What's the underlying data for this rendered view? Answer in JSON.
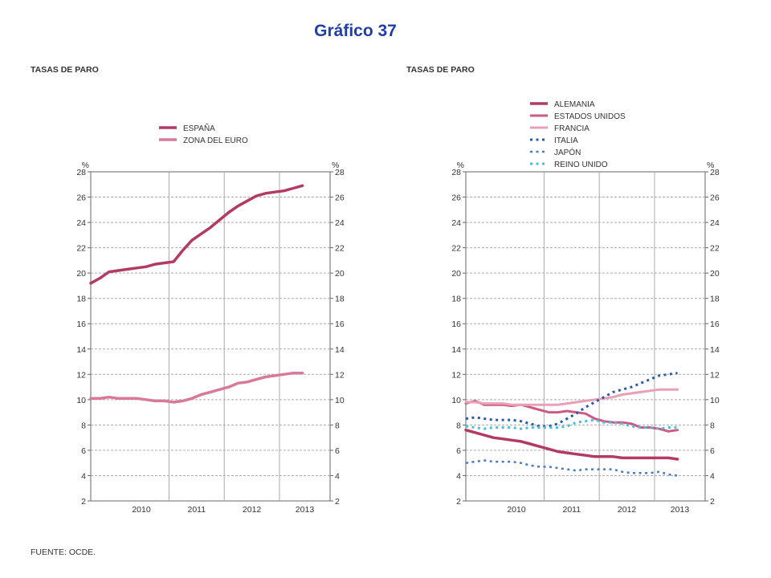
{
  "page": {
    "title": "Gráfico 37",
    "source": "FUENTE: OCDE."
  },
  "colors": {
    "grid": "#aaaaaa",
    "axis": "#666666",
    "title": "#1f3fa8"
  },
  "chart_data": [
    {
      "type": "line",
      "title": "TASAS DE PARO",
      "y_unit": "%",
      "ylim": [
        2,
        28
      ],
      "y_ticks": [
        "2",
        "4",
        "6",
        "8",
        "10",
        "12",
        "14",
        "16",
        "18",
        "20",
        "22",
        "24",
        "26",
        "28"
      ],
      "x_period_labels": [
        "2010",
        "2011",
        "2012",
        "2013"
      ],
      "x_range": [
        "2009-08",
        "2013-12"
      ],
      "grid": true,
      "legend_position": "top",
      "series": [
        {
          "name": "ESPAÑA",
          "color": "#b23a64",
          "style": "solid",
          "width": 3.5,
          "x": [
            "2009-08",
            "2009-10",
            "2009-12",
            "2010-02",
            "2010-04",
            "2010-06",
            "2010-08",
            "2010-10",
            "2010-12",
            "2011-02",
            "2011-04",
            "2011-06",
            "2011-08",
            "2011-10",
            "2011-12",
            "2012-02",
            "2012-04",
            "2012-06",
            "2012-08",
            "2012-10",
            "2012-12",
            "2013-02",
            "2013-04",
            "2013-06"
          ],
          "y": [
            19.2,
            19.6,
            20.1,
            20.2,
            20.3,
            20.4,
            20.5,
            20.7,
            20.8,
            20.9,
            21.8,
            22.6,
            23.1,
            23.6,
            24.2,
            24.8,
            25.3,
            25.7,
            26.1,
            26.3,
            26.4,
            26.5,
            26.7,
            26.9
          ]
        },
        {
          "name": "ZONA DEL EURO",
          "color": "#d9799a",
          "style": "solid",
          "width": 3.5,
          "x": [
            "2009-08",
            "2009-10",
            "2009-12",
            "2010-02",
            "2010-04",
            "2010-06",
            "2010-08",
            "2010-10",
            "2010-12",
            "2011-02",
            "2011-04",
            "2011-06",
            "2011-08",
            "2011-10",
            "2011-12",
            "2012-02",
            "2012-04",
            "2012-06",
            "2012-08",
            "2012-10",
            "2012-12",
            "2013-02",
            "2013-04",
            "2013-06"
          ],
          "y": [
            10.1,
            10.1,
            10.2,
            10.1,
            10.1,
            10.1,
            10.0,
            9.9,
            9.9,
            9.8,
            9.9,
            10.1,
            10.4,
            10.6,
            10.8,
            11.0,
            11.3,
            11.4,
            11.6,
            11.8,
            11.9,
            12.0,
            12.1,
            12.1
          ]
        }
      ]
    },
    {
      "type": "line",
      "title": "TASAS DE PARO",
      "y_unit": "%",
      "ylim": [
        2,
        28
      ],
      "y_ticks": [
        "2",
        "4",
        "6",
        "8",
        "10",
        "12",
        "14",
        "16",
        "18",
        "20",
        "22",
        "24",
        "26",
        "28"
      ],
      "x_period_labels": [
        "2010",
        "2011",
        "2012",
        "2013"
      ],
      "x_range": [
        "2009-08",
        "2013-12"
      ],
      "grid": true,
      "legend_position": "top",
      "series": [
        {
          "name": "ALEMANIA",
          "color": "#b23a64",
          "style": "solid",
          "width": 3.5,
          "x": [
            "2009-08",
            "2009-10",
            "2009-12",
            "2010-02",
            "2010-04",
            "2010-06",
            "2010-08",
            "2010-10",
            "2010-12",
            "2011-02",
            "2011-04",
            "2011-06",
            "2011-08",
            "2011-10",
            "2011-12",
            "2012-02",
            "2012-04",
            "2012-06",
            "2012-08",
            "2012-10",
            "2012-12",
            "2013-02",
            "2013-04",
            "2013-06"
          ],
          "y": [
            7.6,
            7.4,
            7.2,
            7.0,
            6.9,
            6.8,
            6.7,
            6.5,
            6.3,
            6.1,
            5.9,
            5.8,
            5.7,
            5.6,
            5.5,
            5.5,
            5.5,
            5.4,
            5.4,
            5.4,
            5.4,
            5.4,
            5.4,
            5.3
          ]
        },
        {
          "name": "ESTADOS UNIDOS",
          "color": "#cc5a82",
          "style": "solid",
          "width": 3,
          "x": [
            "2009-08",
            "2009-10",
            "2009-12",
            "2010-02",
            "2010-04",
            "2010-06",
            "2010-08",
            "2010-10",
            "2010-12",
            "2011-02",
            "2011-04",
            "2011-06",
            "2011-08",
            "2011-10",
            "2011-12",
            "2012-02",
            "2012-04",
            "2012-06",
            "2012-08",
            "2012-10",
            "2012-12",
            "2013-02",
            "2013-04",
            "2013-06"
          ],
          "y": [
            9.7,
            9.9,
            9.6,
            9.6,
            9.6,
            9.5,
            9.6,
            9.4,
            9.2,
            9.0,
            9.0,
            9.1,
            9.0,
            8.9,
            8.5,
            8.3,
            8.2,
            8.2,
            8.1,
            7.8,
            7.8,
            7.7,
            7.5,
            7.6
          ]
        },
        {
          "name": "FRANCIA",
          "color": "#e8a0b6",
          "style": "solid",
          "width": 3,
          "x": [
            "2009-08",
            "2009-10",
            "2009-12",
            "2010-02",
            "2010-04",
            "2010-06",
            "2010-08",
            "2010-10",
            "2010-12",
            "2011-02",
            "2011-04",
            "2011-06",
            "2011-08",
            "2011-10",
            "2011-12",
            "2012-02",
            "2012-04",
            "2012-06",
            "2012-08",
            "2012-10",
            "2012-12",
            "2013-02",
            "2013-04",
            "2013-06"
          ],
          "y": [
            9.8,
            9.8,
            9.7,
            9.7,
            9.7,
            9.6,
            9.6,
            9.6,
            9.6,
            9.6,
            9.6,
            9.7,
            9.8,
            9.9,
            10.0,
            10.1,
            10.2,
            10.4,
            10.5,
            10.6,
            10.7,
            10.8,
            10.8,
            10.8
          ]
        },
        {
          "name": "ITALIA",
          "color": "#2b5aa8",
          "style": "dotted",
          "width": 3,
          "x": [
            "2009-08",
            "2009-10",
            "2009-12",
            "2010-02",
            "2010-04",
            "2010-06",
            "2010-08",
            "2010-10",
            "2010-12",
            "2011-02",
            "2011-04",
            "2011-06",
            "2011-08",
            "2011-10",
            "2011-12",
            "2012-02",
            "2012-04",
            "2012-06",
            "2012-08",
            "2012-10",
            "2012-12",
            "2013-02",
            "2013-04",
            "2013-06"
          ],
          "y": [
            8.5,
            8.6,
            8.5,
            8.4,
            8.4,
            8.4,
            8.3,
            8.1,
            7.9,
            7.9,
            8.1,
            8.5,
            8.9,
            9.4,
            9.8,
            10.2,
            10.6,
            10.8,
            11.0,
            11.3,
            11.6,
            11.9,
            12.0,
            12.1
          ]
        },
        {
          "name": "JAPÓN",
          "color": "#4a7ac0",
          "style": "dotted",
          "width": 2.5,
          "x": [
            "2009-08",
            "2009-10",
            "2009-12",
            "2010-02",
            "2010-04",
            "2010-06",
            "2010-08",
            "2010-10",
            "2010-12",
            "2011-02",
            "2011-04",
            "2011-06",
            "2011-08",
            "2011-10",
            "2011-12",
            "2012-02",
            "2012-04",
            "2012-06",
            "2012-08",
            "2012-10",
            "2012-12",
            "2013-02",
            "2013-04",
            "2013-06"
          ],
          "y": [
            5.0,
            5.1,
            5.2,
            5.1,
            5.1,
            5.1,
            5.0,
            4.8,
            4.7,
            4.7,
            4.6,
            4.5,
            4.4,
            4.5,
            4.5,
            4.5,
            4.5,
            4.3,
            4.2,
            4.2,
            4.2,
            4.3,
            4.1,
            4.0
          ]
        },
        {
          "name": "REINO UNIDO",
          "color": "#48c0d8",
          "style": "dotted",
          "width": 3,
          "x": [
            "2009-08",
            "2009-10",
            "2009-12",
            "2010-02",
            "2010-04",
            "2010-06",
            "2010-08",
            "2010-10",
            "2010-12",
            "2011-02",
            "2011-04",
            "2011-06",
            "2011-08",
            "2011-10",
            "2011-12",
            "2012-02",
            "2012-04",
            "2012-06",
            "2012-08",
            "2012-10",
            "2012-12",
            "2013-02",
            "2013-04",
            "2013-06"
          ],
          "y": [
            7.9,
            7.8,
            7.7,
            7.8,
            7.8,
            7.8,
            7.7,
            7.8,
            7.8,
            7.8,
            7.8,
            7.9,
            8.2,
            8.3,
            8.4,
            8.2,
            8.2,
            8.1,
            7.9,
            7.8,
            7.8,
            7.7,
            7.8,
            7.8
          ]
        }
      ]
    }
  ]
}
